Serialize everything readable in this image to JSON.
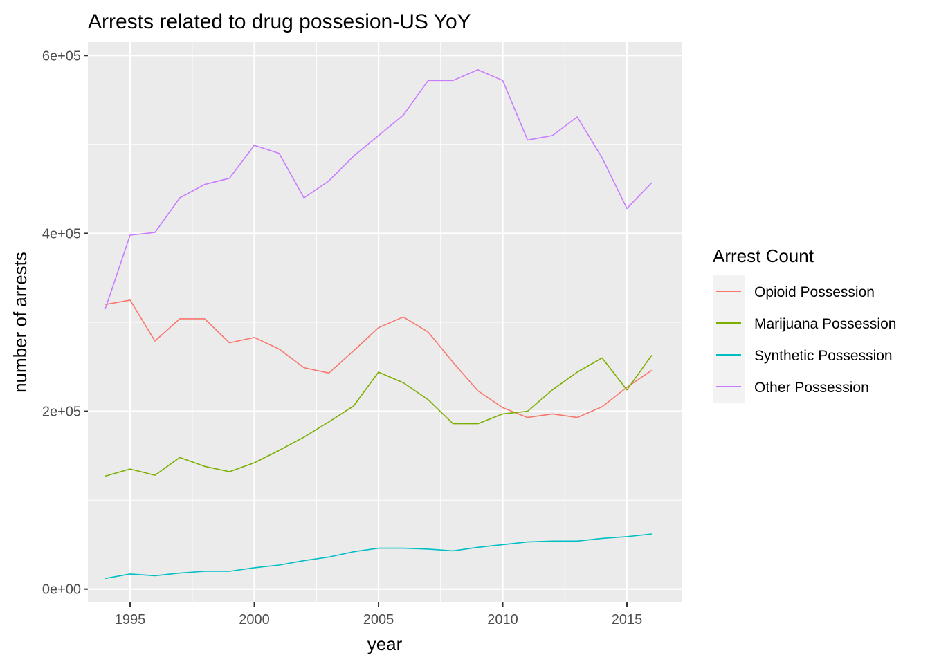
{
  "chart_data": {
    "type": "line",
    "title": "Arrests related to drug possesion-US YoY",
    "xlabel": "year",
    "ylabel": "number of arrests",
    "xlim": [
      1993.3,
      2017.2
    ],
    "ylim": [
      -15000,
      615000
    ],
    "x_ticks": [
      1995,
      2000,
      2005,
      2010,
      2015
    ],
    "x_tick_labels": [
      "1995",
      "2000",
      "2005",
      "2010",
      "2015"
    ],
    "y_ticks": [
      0,
      200000,
      400000,
      600000
    ],
    "y_tick_labels": [
      "0e+00",
      "2e+05",
      "4e+05",
      "6e+05"
    ],
    "grid": true,
    "legend": {
      "title": "Arrest Count",
      "position": "right"
    },
    "x": [
      1994,
      1995,
      1996,
      1997,
      1998,
      1999,
      2000,
      2001,
      2002,
      2003,
      2004,
      2005,
      2006,
      2007,
      2008,
      2009,
      2010,
      2011,
      2012,
      2013,
      2014,
      2015,
      2016
    ],
    "series": [
      {
        "name": "Opioid Possession",
        "color": "#F8766D",
        "values": [
          320000,
          325000,
          279000,
          304000,
          304000,
          277000,
          283000,
          270000,
          249000,
          243000,
          268000,
          294000,
          306000,
          289000,
          255000,
          223000,
          204000,
          193000,
          197000,
          193000,
          205000,
          227000,
          246000
        ]
      },
      {
        "name": "Marijuana Possession",
        "color": "#7CAE00",
        "values": [
          127000,
          135000,
          128000,
          148000,
          138000,
          132000,
          142000,
          156000,
          171000,
          188000,
          206000,
          244000,
          232000,
          213000,
          186000,
          186000,
          197000,
          200000,
          224000,
          244000,
          260000,
          224000,
          263000
        ]
      },
      {
        "name": "Synthetic Possession",
        "color": "#00BFC4",
        "values": [
          12000,
          17000,
          15000,
          18000,
          20000,
          20000,
          24000,
          27000,
          32000,
          36000,
          42000,
          46000,
          46000,
          45000,
          43000,
          47000,
          50000,
          53000,
          54000,
          54000,
          57000,
          59000,
          62000
        ]
      },
      {
        "name": "Other Possession",
        "color": "#C77CFF",
        "values": [
          315000,
          398000,
          401000,
          440000,
          455000,
          462000,
          499000,
          490000,
          440000,
          459000,
          487000,
          510000,
          533000,
          572000,
          572000,
          584000,
          572000,
          505000,
          510000,
          531000,
          485000,
          428000,
          457000
        ]
      }
    ]
  }
}
